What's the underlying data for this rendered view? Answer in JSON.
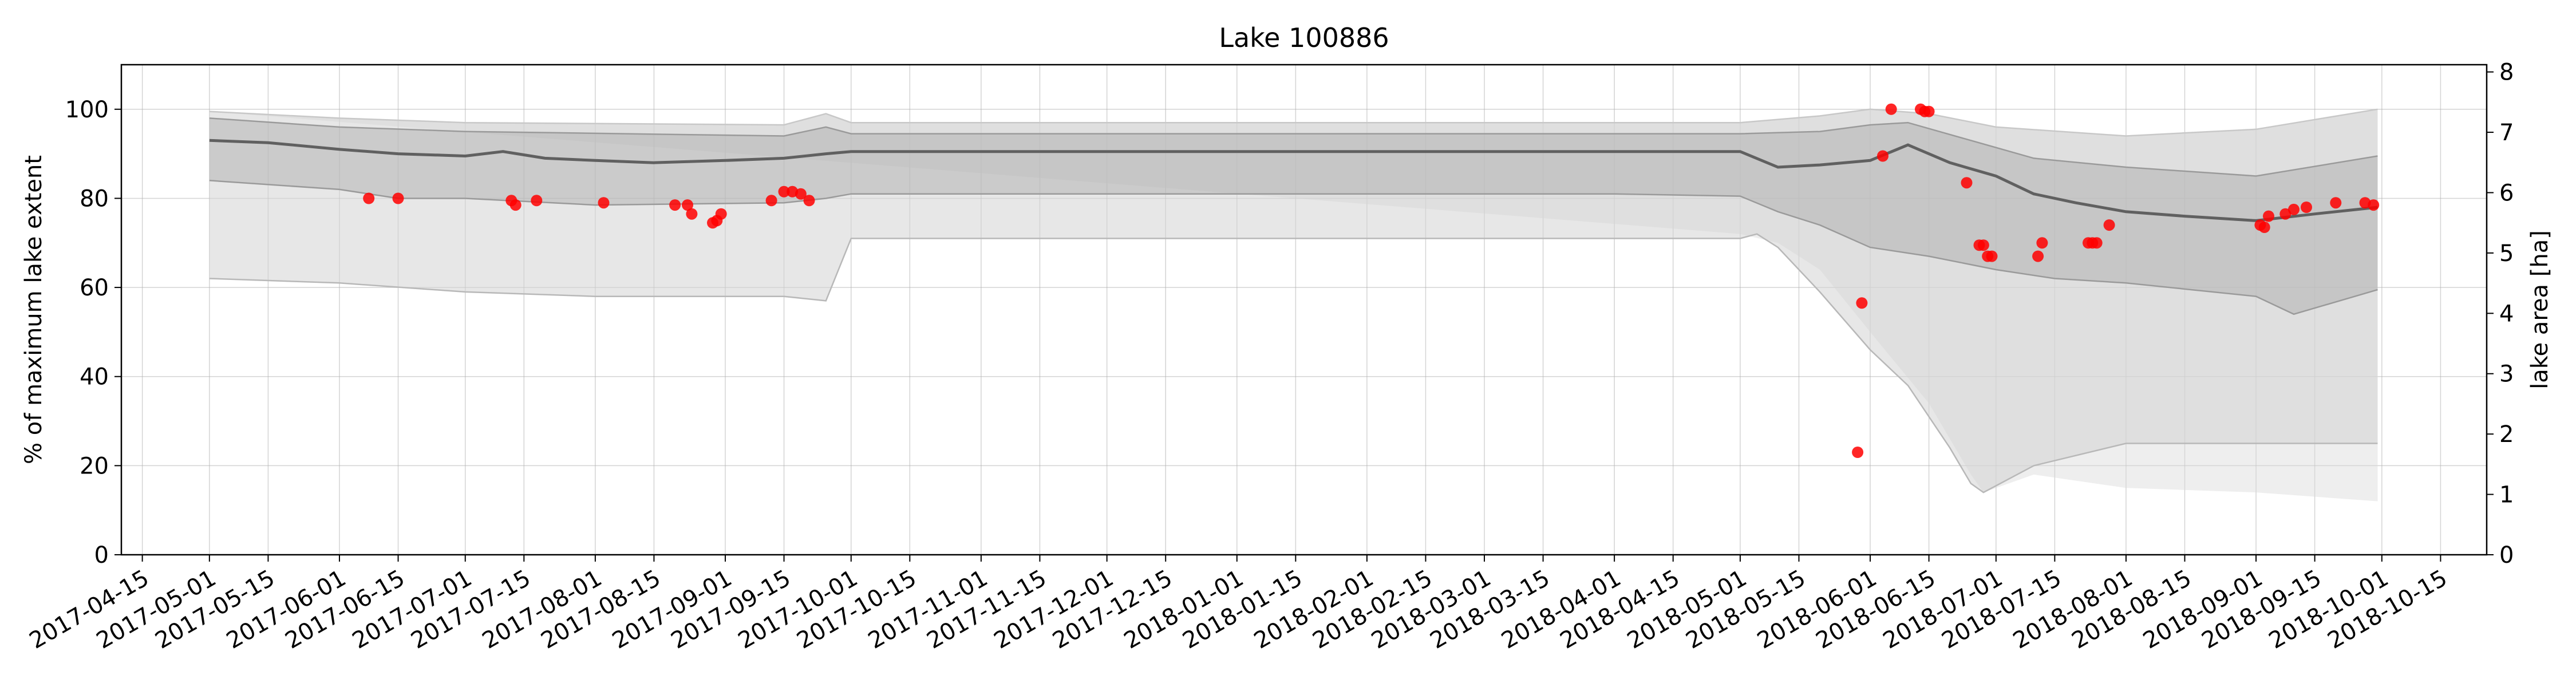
{
  "chart_data": {
    "type": "line",
    "title": "Lake 100886",
    "ylabel_left": "% of maximum lake extent",
    "ylabel_right": "lake area [ha]",
    "xlim": [
      "2017-04-10",
      "2018-10-26"
    ],
    "ylim_left": [
      0,
      110
    ],
    "ylim_right": [
      0,
      8.12
    ],
    "grid": true,
    "x_ticks": [
      "2017-04-15",
      "2017-05-01",
      "2017-05-15",
      "2017-06-01",
      "2017-06-15",
      "2017-07-01",
      "2017-07-15",
      "2017-08-01",
      "2017-08-15",
      "2017-09-01",
      "2017-09-15",
      "2017-10-01",
      "2017-10-15",
      "2017-11-01",
      "2017-11-15",
      "2017-12-01",
      "2017-12-15",
      "2018-01-01",
      "2018-01-15",
      "2018-02-01",
      "2018-02-15",
      "2018-03-01",
      "2018-03-15",
      "2018-04-01",
      "2018-04-15",
      "2018-05-01",
      "2018-05-15",
      "2018-06-01",
      "2018-06-15",
      "2018-07-01",
      "2018-07-15",
      "2018-08-01",
      "2018-08-15",
      "2018-09-01",
      "2018-09-15",
      "2018-10-01",
      "2018-10-15"
    ],
    "y_ticks_left": [
      0,
      20,
      40,
      60,
      80,
      100
    ],
    "y_ticks_right": [
      0,
      1,
      2,
      3,
      4,
      5,
      6,
      7,
      8
    ],
    "median": {
      "x": [
        "2017-05-01",
        "2017-05-15",
        "2017-06-01",
        "2017-06-15",
        "2017-07-01",
        "2017-07-10",
        "2017-07-20",
        "2017-08-01",
        "2017-08-15",
        "2017-09-01",
        "2017-09-15",
        "2017-09-25",
        "2017-10-01",
        "2018-04-01",
        "2018-05-01",
        "2018-05-10",
        "2018-05-20",
        "2018-06-01",
        "2018-06-10",
        "2018-06-20",
        "2018-07-01",
        "2018-07-10",
        "2018-07-20",
        "2018-08-01",
        "2018-08-15",
        "2018-09-01",
        "2018-09-15",
        "2018-09-30"
      ],
      "y": [
        93,
        92.5,
        91,
        90,
        89.5,
        90.5,
        89,
        88.5,
        88,
        88.5,
        89,
        90,
        90.5,
        90.5,
        90.5,
        87,
        87.5,
        88.5,
        92,
        88,
        85,
        81,
        79,
        77,
        76,
        75,
        76.5,
        78
      ]
    },
    "band_inner_upper": {
      "x": [
        "2017-05-01",
        "2017-06-01",
        "2017-07-01",
        "2017-09-15",
        "2017-09-25",
        "2017-10-01",
        "2018-04-01",
        "2018-05-01",
        "2018-05-20",
        "2018-06-01",
        "2018-06-10",
        "2018-06-25",
        "2018-07-10",
        "2018-08-01",
        "2018-09-01",
        "2018-09-30"
      ],
      "y": [
        98,
        96,
        95,
        94,
        96,
        94.5,
        94.5,
        94.5,
        95,
        96.5,
        97,
        93,
        89,
        87,
        85,
        89.5
      ]
    },
    "band_inner_lower": {
      "x": [
        "2017-05-01",
        "2017-06-01",
        "2017-06-15",
        "2017-07-01",
        "2017-08-01",
        "2017-09-15",
        "2017-09-25",
        "2017-10-01",
        "2018-04-01",
        "2018-05-01",
        "2018-05-10",
        "2018-05-20",
        "2018-06-01",
        "2018-06-15",
        "2018-07-01",
        "2018-07-15",
        "2018-08-01",
        "2018-09-01",
        "2018-09-10",
        "2018-09-30"
      ],
      "y": [
        84,
        82,
        80,
        80,
        78.5,
        79,
        80,
        81,
        81,
        80.5,
        77,
        74,
        69,
        67,
        64,
        62,
        61,
        58,
        54,
        59.5
      ]
    },
    "band_outer_upper": {
      "x": [
        "2017-05-01",
        "2017-06-01",
        "2017-07-01",
        "2017-09-15",
        "2017-09-25",
        "2017-10-01",
        "2018-04-01",
        "2018-05-01",
        "2018-05-20",
        "2018-06-01",
        "2018-06-15",
        "2018-07-01",
        "2018-08-01",
        "2018-09-01",
        "2018-09-30"
      ],
      "y": [
        99.5,
        98,
        97,
        96.5,
        99,
        97,
        97,
        97,
        98.5,
        100,
        99,
        96,
        94,
        95.5,
        100
      ]
    },
    "band_outer_lower": {
      "x": [
        "2017-05-01",
        "2017-06-01",
        "2017-07-01",
        "2017-08-01",
        "2017-09-15",
        "2017-09-25",
        "2017-10-01",
        "2018-04-01",
        "2018-05-01",
        "2018-05-05",
        "2018-05-10",
        "2018-05-20",
        "2018-06-01",
        "2018-06-10",
        "2018-06-20",
        "2018-06-25",
        "2018-06-28",
        "2018-07-10",
        "2018-08-01",
        "2018-09-01",
        "2018-09-30"
      ],
      "y": [
        62,
        61,
        59,
        58,
        58,
        57,
        71,
        71,
        71,
        72,
        69,
        59,
        46,
        38,
        24,
        16,
        14,
        20,
        25,
        25,
        25
      ]
    },
    "band_extra_lower": {
      "x": [
        "2018-05-01",
        "2018-05-10",
        "2018-05-20",
        "2018-06-01",
        "2018-06-15",
        "2018-06-25",
        "2018-06-28",
        "2018-07-10",
        "2018-08-01",
        "2018-09-01",
        "2018-09-30"
      ],
      "y": [
        72,
        70,
        64,
        50,
        34,
        18,
        14,
        18,
        15,
        14,
        12
      ]
    },
    "observations": {
      "x": [
        "2017-06-08",
        "2017-06-15",
        "2017-07-12",
        "2017-07-13",
        "2017-07-18",
        "2017-08-03",
        "2017-08-20",
        "2017-08-23",
        "2017-08-24",
        "2017-08-29",
        "2017-08-30",
        "2017-08-31",
        "2017-09-12",
        "2017-09-15",
        "2017-09-17",
        "2017-09-19",
        "2017-09-21",
        "2018-05-29",
        "2018-05-30",
        "2018-06-04",
        "2018-06-06",
        "2018-06-13",
        "2018-06-14",
        "2018-06-15",
        "2018-06-24",
        "2018-06-27",
        "2018-06-28",
        "2018-06-29",
        "2018-06-30",
        "2018-07-11",
        "2018-07-12",
        "2018-07-23",
        "2018-07-24",
        "2018-07-25",
        "2018-07-28",
        "2018-09-02",
        "2018-09-03",
        "2018-09-04",
        "2018-09-08",
        "2018-09-10",
        "2018-09-13",
        "2018-09-20",
        "2018-09-27",
        "2018-09-29"
      ],
      "y": [
        80,
        80,
        79.5,
        78.5,
        79.5,
        79,
        78.5,
        78.5,
        76.5,
        74.5,
        75,
        76.5,
        79.5,
        81.5,
        81.5,
        81,
        79.5,
        23,
        56.5,
        89.5,
        100,
        100,
        99.5,
        99.5,
        83.5,
        69.5,
        69.5,
        67,
        67,
        67,
        70,
        70,
        70,
        70,
        74,
        74,
        73.5,
        76,
        76.5,
        77.5,
        78,
        79,
        79,
        78.5
      ]
    }
  }
}
